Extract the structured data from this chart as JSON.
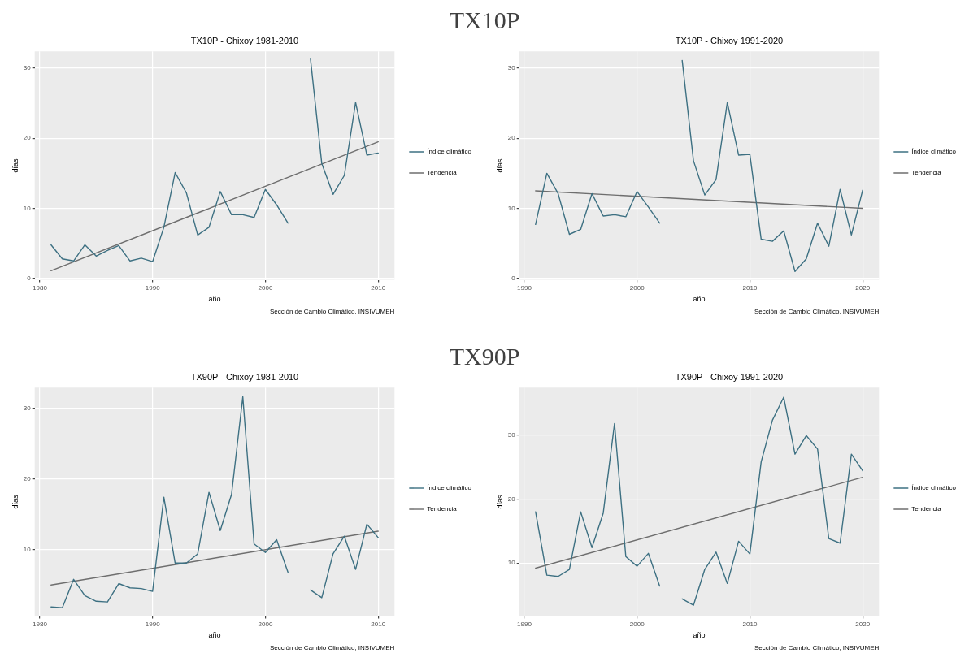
{
  "chart_data": [
    {
      "type": "other",
      "title": "TX10P"
    },
    {
      "type": "line",
      "title": "TX10P - Chixoy 1981-2010",
      "xlabel": "año",
      "ylabel": "días",
      "annotations": [
        "Sección de Cambio Climático, INSIVUMEH"
      ],
      "x": [
        1981,
        1982,
        1983,
        1984,
        1985,
        1986,
        1987,
        1988,
        1989,
        1990,
        1991,
        1992,
        1993,
        1994,
        1995,
        1996,
        1997,
        1998,
        1999,
        2000,
        2001,
        2002,
        2003,
        2004,
        2005,
        2006,
        2007,
        2008,
        2009,
        2010
      ],
      "xlim": [
        1979.55,
        2011.45
      ],
      "xticks": [
        1980,
        1990,
        2000,
        2010
      ],
      "ylim": [
        -0.2,
        32.4
      ],
      "yticks": [
        0,
        10,
        20,
        30
      ],
      "grid": true,
      "legend": "right",
      "marker": "none",
      "series": [
        {
          "name": "Índice climático",
          "color": "#3d7082",
          "values": [
            4.8,
            2.8,
            2.5,
            4.8,
            3.2,
            4.0,
            4.7,
            2.5,
            2.9,
            2.4,
            7.3,
            15.1,
            12.2,
            6.2,
            7.3,
            12.4,
            9.1,
            9.1,
            8.7,
            12.7,
            10.5,
            7.9,
            null,
            31.3,
            16.4,
            12.0,
            14.7,
            25.1,
            17.6,
            17.9
          ]
        },
        {
          "name": "Tendencia",
          "color": "#6e6e6e",
          "x": [
            1981,
            2010
          ],
          "values": [
            1.1,
            19.5
          ]
        }
      ]
    },
    {
      "type": "line",
      "title": "TX10P - Chixoy 1991-2020",
      "xlabel": "año",
      "ylabel": "días",
      "annotations": [
        "Sección de Cambio Climático, INSIVUMEH"
      ],
      "x": [
        1991,
        1992,
        1993,
        1994,
        1995,
        1996,
        1997,
        1998,
        1999,
        2000,
        2001,
        2002,
        2003,
        2004,
        2005,
        2006,
        2007,
        2008,
        2009,
        2010,
        2011,
        2012,
        2013,
        2014,
        2015,
        2016,
        2017,
        2018,
        2019,
        2020
      ],
      "xlim": [
        1989.55,
        2021.45
      ],
      "xticks": [
        1990,
        2000,
        2010,
        2020
      ],
      "ylim": [
        -0.2,
        32.4
      ],
      "yticks": [
        0,
        10,
        20,
        30
      ],
      "grid": true,
      "legend": "right",
      "marker": "none",
      "series": [
        {
          "name": "Índice climático",
          "color": "#3d7082",
          "values": [
            7.7,
            15.0,
            12.1,
            6.3,
            7.0,
            12.1,
            8.9,
            9.1,
            8.8,
            12.4,
            10.2,
            7.9,
            null,
            31.1,
            16.8,
            11.9,
            14.1,
            25.1,
            17.6,
            17.7,
            5.6,
            5.3,
            6.8,
            1.0,
            2.8,
            7.9,
            4.6,
            12.7,
            6.2,
            12.6
          ]
        },
        {
          "name": "Tendencia",
          "color": "#6e6e6e",
          "x": [
            1991,
            2020
          ],
          "values": [
            12.5,
            10.0
          ]
        }
      ]
    },
    {
      "type": "other",
      "title": "TX90P"
    },
    {
      "type": "line",
      "title": "TX90P - Chixoy 1981-2010",
      "xlabel": "año",
      "ylabel": "días",
      "annotations": [
        "Sección de Cambio Climático, INSIVUMEH"
      ],
      "x": [
        1981,
        1982,
        1983,
        1984,
        1985,
        1986,
        1987,
        1988,
        1989,
        1990,
        1991,
        1992,
        1993,
        1994,
        1995,
        1996,
        1997,
        1998,
        1999,
        2000,
        2001,
        2002,
        2003,
        2004,
        2005,
        2006,
        2007,
        2008,
        2009,
        2010
      ],
      "xlim": [
        1979.55,
        2011.45
      ],
      "xticks": [
        1980,
        1990,
        2000,
        2010
      ],
      "ylim": [
        0.6,
        32.9
      ],
      "yticks": [
        10,
        20,
        30
      ],
      "grid": true,
      "legend": "right",
      "marker": "none",
      "series": [
        {
          "name": "Índice climático",
          "color": "#3d7082",
          "values": [
            1.9,
            1.8,
            5.8,
            3.5,
            2.7,
            2.6,
            5.2,
            4.6,
            4.5,
            4.1,
            17.4,
            8.1,
            8.1,
            9.4,
            18.1,
            12.7,
            17.8,
            31.6,
            10.8,
            9.6,
            11.4,
            6.8,
            null,
            4.3,
            3.2,
            9.4,
            11.9,
            7.2,
            13.6,
            11.7
          ]
        },
        {
          "name": "Tendencia",
          "color": "#6e6e6e",
          "x": [
            1981,
            2010
          ],
          "values": [
            5.0,
            12.6
          ]
        }
      ]
    },
    {
      "type": "line",
      "title": "TX90P - Chixoy 1991-2020",
      "xlabel": "año",
      "ylabel": "días",
      "annotations": [
        "Sección de Cambio Climático, INSIVUMEH"
      ],
      "x": [
        1991,
        1992,
        1993,
        1994,
        1995,
        1996,
        1997,
        1998,
        1999,
        2000,
        2001,
        2002,
        2003,
        2004,
        2005,
        2006,
        2007,
        2008,
        2009,
        2010,
        2011,
        2012,
        2013,
        2014,
        2015,
        2016,
        2017,
        2018,
        2019,
        2020
      ],
      "xlim": [
        1989.55,
        2021.45
      ],
      "xticks": [
        1990,
        2000,
        2010,
        2020
      ],
      "ylim": [
        1.7,
        37.4
      ],
      "yticks": [
        10,
        20,
        30
      ],
      "grid": true,
      "legend": "right",
      "marker": "none",
      "series": [
        {
          "name": "Índice climático",
          "color": "#3d7082",
          "values": [
            18.0,
            8.1,
            7.9,
            9.0,
            18.0,
            12.4,
            17.8,
            31.8,
            11.0,
            9.5,
            11.5,
            6.4,
            null,
            4.4,
            3.4,
            9.0,
            11.7,
            6.8,
            13.4,
            11.4,
            25.8,
            32.3,
            35.9,
            27.0,
            29.9,
            27.8,
            13.8,
            13.1,
            27.0,
            24.4
          ]
        },
        {
          "name": "Tendencia",
          "color": "#6e6e6e",
          "x": [
            1991,
            2020
          ],
          "values": [
            9.2,
            23.4
          ]
        }
      ]
    }
  ]
}
